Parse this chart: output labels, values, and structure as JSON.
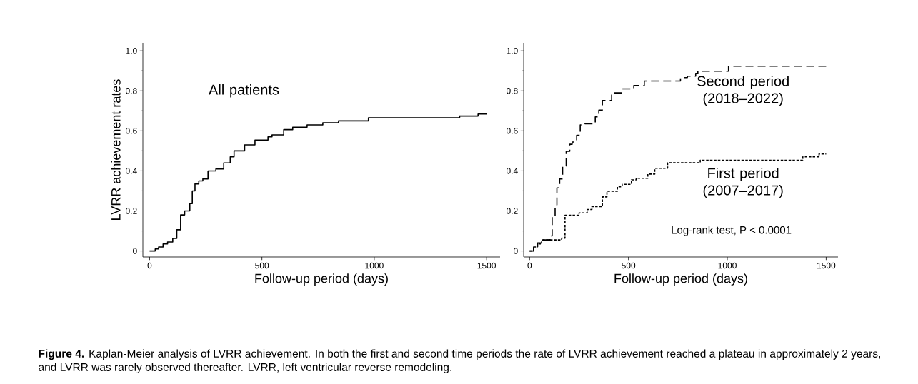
{
  "chart_data": [
    {
      "type": "step",
      "xlabel": "Follow-up period (days)",
      "ylabel": "LVRR achievement rates",
      "xlim": [
        -30,
        1560
      ],
      "ylim": [
        -0.03,
        1.04
      ],
      "xticks": [
        0,
        500,
        1000,
        1500
      ],
      "yticks": [
        0,
        0.2,
        0.4,
        0.6,
        0.8,
        {
          "value": 1,
          "label": "1.0"
        }
      ],
      "legend": false,
      "grid": false,
      "series": [
        {
          "name": "All patients",
          "color": "#000000",
          "line_style": "solid",
          "x": [
            0,
            25,
            40,
            60,
            80,
            103,
            121,
            138,
            156,
            179,
            190,
            202,
            219,
            237,
            260,
            295,
            330,
            359,
            376,
            423,
            469,
            527,
            545,
            597,
            637,
            701,
            771,
            841,
            974,
            1380,
            1462,
            1500
          ],
          "values": [
            0,
            0.01,
            0.02,
            0.035,
            0.045,
            0.063,
            0.106,
            0.18,
            0.2,
            0.237,
            0.3,
            0.335,
            0.35,
            0.36,
            0.4,
            0.41,
            0.44,
            0.47,
            0.5,
            0.53,
            0.554,
            0.57,
            0.58,
            0.606,
            0.618,
            0.63,
            0.64,
            0.65,
            0.665,
            0.674,
            0.684,
            0.684
          ]
        }
      ],
      "annotations": [
        "**Figure 4.**    Kaplan-Meier analysis of LVRR achievement. In both the first and second time periods the rate of LVRR achievement reached a plateau in approximately 2 years, and LVRR was rarely observed thereafter. LVRR, left ventricular reverse remodeling."
      ]
    },
    {
      "type": "step",
      "xlabel": "Follow-up period (days)",
      "xlim": [
        -30,
        1560
      ],
      "ylim": [
        -0.03,
        1.04
      ],
      "xticks": [
        0,
        500,
        1000,
        1500
      ],
      "yticks": [
        0,
        0.2,
        0.4,
        0.6,
        0.8,
        {
          "value": 1,
          "label": "1.0"
        }
      ],
      "legend": false,
      "grid": false,
      "series": [
        {
          "name": "Second period (2018–2022)",
          "color": "#000000",
          "line_style": "dashed",
          "x": [
            0,
            20,
            40,
            61,
            103,
            114,
            129,
            138,
            152,
            167,
            185,
            203,
            215,
            238,
            256,
            279,
            332,
            350,
            368,
            415,
            468,
            527,
            580,
            763,
            798,
            840,
            851,
            1006,
            1500
          ],
          "values": [
            0,
            0.02,
            0.04,
            0.055,
            0.075,
            0.167,
            0.23,
            0.315,
            0.36,
            0.424,
            0.498,
            0.533,
            0.544,
            0.578,
            0.63,
            0.635,
            0.67,
            0.704,
            0.752,
            0.79,
            0.81,
            0.827,
            0.849,
            0.866,
            0.873,
            0.887,
            0.898,
            0.923,
            0.923
          ]
        },
        {
          "name": "First period (2007–2017)",
          "color": "#000000",
          "line_style": "dotted",
          "x": [
            0,
            20,
            40,
            61,
            162,
            179,
            250,
            291,
            315,
            368,
            391,
            444,
            468,
            515,
            539,
            598,
            633,
            698,
            863,
            1382,
            1464,
            1500
          ],
          "values": [
            0,
            0.02,
            0.035,
            0.055,
            0.064,
            0.178,
            0.19,
            0.207,
            0.222,
            0.27,
            0.298,
            0.321,
            0.333,
            0.355,
            0.363,
            0.384,
            0.413,
            0.441,
            0.453,
            0.47,
            0.485,
            0.485
          ]
        }
      ],
      "annotations": [
        "Log-rank test, P < 0.0001"
      ]
    }
  ]
}
